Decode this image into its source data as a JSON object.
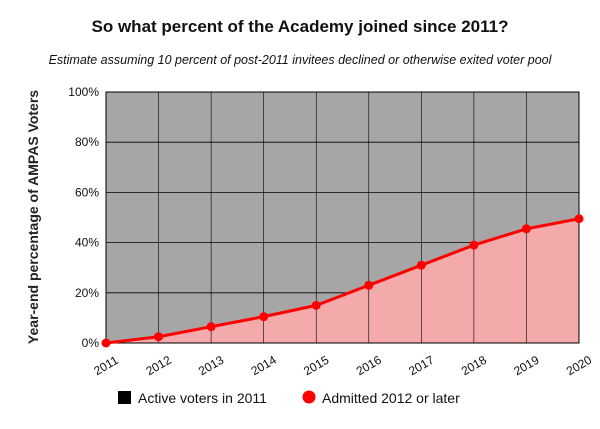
{
  "chart_data": {
    "type": "area",
    "title": "So what percent of the Academy joined since 2011?",
    "subtitle": "Estimate assuming 10 percent of post-2011 invitees declined or otherwise exited voter pool",
    "xlabel": "",
    "ylabel": "Year-end percentage of AMPAS Voters",
    "x": [
      "2011",
      "2012",
      "2013",
      "2014",
      "2015",
      "2016",
      "2017",
      "2018",
      "2019",
      "2020"
    ],
    "ylim": [
      0,
      100
    ],
    "yticks": [
      "0%",
      "20%",
      "40%",
      "60%",
      "80%",
      "100%"
    ],
    "grid": true,
    "legend_position": "bottom",
    "series": [
      {
        "name": "Active voters in 2011",
        "color": "#a6a6a6",
        "values": [
          100,
          97.5,
          93.5,
          89.5,
          85,
          77,
          69,
          61,
          54.5,
          50.5
        ]
      },
      {
        "name": "Admitted 2012 or later",
        "color": "#ff0000",
        "fill": "#f4aaaa",
        "values": [
          0,
          2.5,
          6.5,
          10.5,
          15,
          23,
          31,
          39,
          45.5,
          49.5
        ]
      }
    ],
    "legend": [
      {
        "label": "Active voters in 2011",
        "marker": "square",
        "color": "#000000"
      },
      {
        "label": "Admitted 2012 or later",
        "marker": "circle",
        "color": "#ff0000"
      }
    ]
  }
}
